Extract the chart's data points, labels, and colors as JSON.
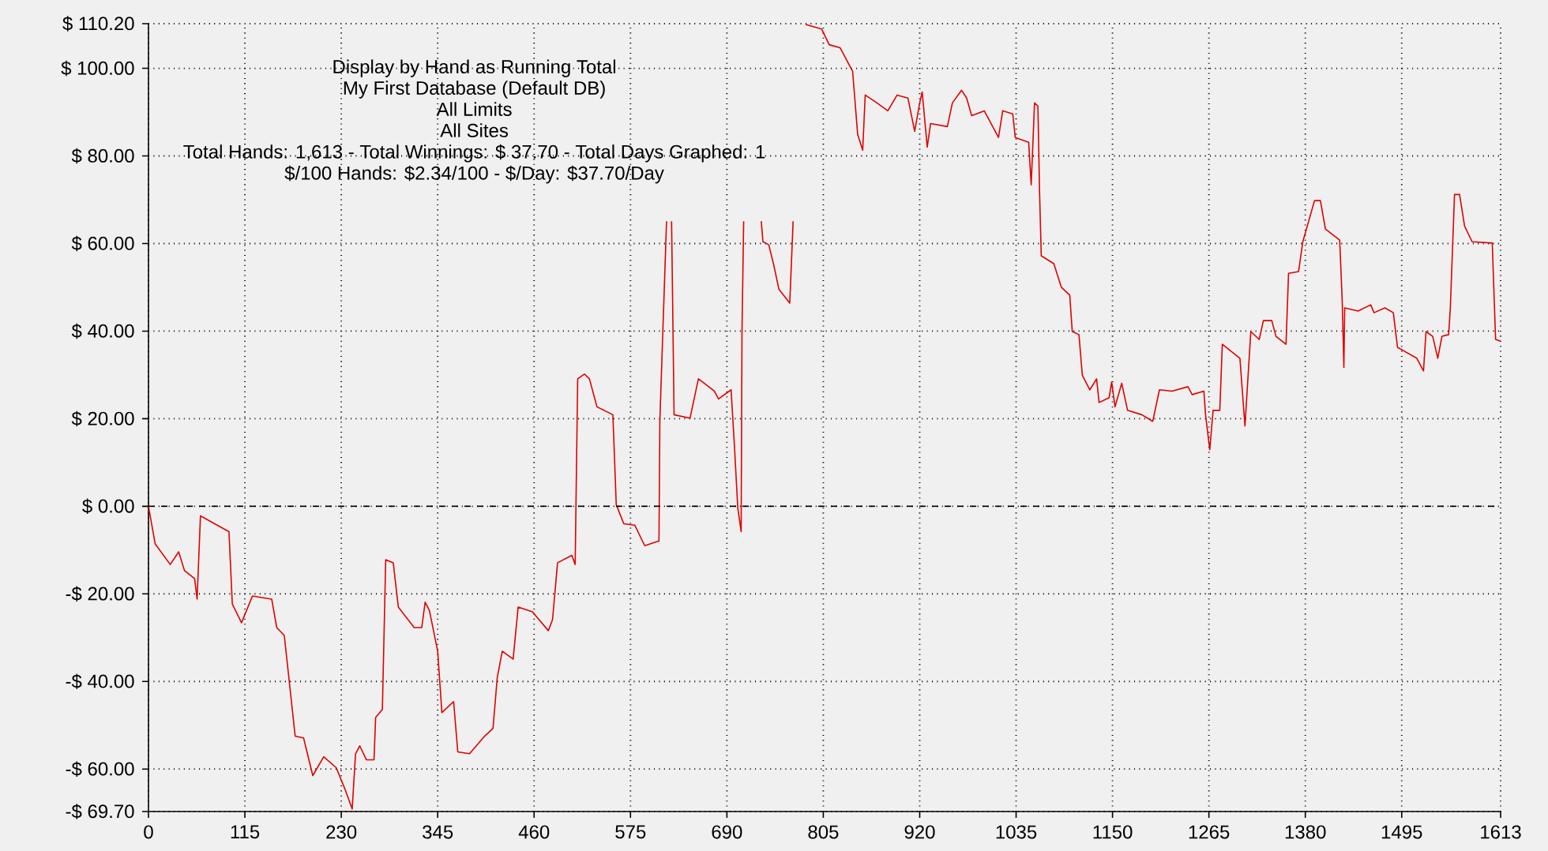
{
  "chart_data": {
    "type": "line",
    "title": "Display by Hand as Running Total",
    "subtitle": "My First Database (Default DB)",
    "annotations": [
      "All Limits",
      "All Sites",
      "Total Hands: 1,613 - Total Winnings: $ 37.70 - Total Days Graphed: 1",
      "$/100 Hands: $2.34/100 - $/Day: $37.70/Day"
    ],
    "xlim": [
      0,
      1613
    ],
    "xticks": [
      0,
      115,
      230,
      345,
      460,
      575,
      690,
      805,
      920,
      1035,
      1150,
      1265,
      1380,
      1495,
      1613
    ],
    "ylim": [
      -69.7,
      110.2
    ],
    "yticks": [
      {
        "value": -69.7,
        "label": "-$ 69.70"
      },
      {
        "value": -60,
        "label": "-$ 60.00"
      },
      {
        "value": -40,
        "label": "-$ 40.00"
      },
      {
        "value": -20,
        "label": "-$ 20.00"
      },
      {
        "value": 0,
        "label": "$ 0.00"
      },
      {
        "value": 20,
        "label": "$ 20.00"
      },
      {
        "value": 40,
        "label": "$ 40.00"
      },
      {
        "value": 60,
        "label": "$ 60.00"
      },
      {
        "value": 80,
        "label": "$ 80.00"
      },
      {
        "value": 100,
        "label": "$ 100.00"
      },
      {
        "value": 110.2,
        "label": "$ 110.20"
      }
    ],
    "grid": true,
    "marker": "none",
    "line_style": "solid",
    "ref_lines": [
      {
        "axis": "y",
        "value": 0,
        "line_style": "dashed",
        "color": "#000000"
      }
    ],
    "series": [
      {
        "color": "#e00000",
        "x": [
          0,
          8,
          26,
          36,
          43,
          55,
          58,
          62,
          96,
          100,
          111,
          124,
          147,
          153,
          162,
          175,
          185,
          196,
          209,
          224,
          234,
          243,
          247,
          252,
          260,
          269,
          271,
          279,
          283,
          292,
          298,
          317,
          326,
          330,
          335,
          345,
          350,
          364,
          369,
          383,
          401,
          411,
          416,
          422,
          435,
          441,
          458,
          477,
          482,
          488,
          505,
          509,
          512,
          520,
          526,
          535,
          554,
          558,
          567,
          580,
          592,
          609,
          610,
          618,
          621,
          624,
          627,
          646,
          656,
          661,
          675,
          680,
          695,
          699,
          703,
          707,
          708,
          710,
          720,
          731,
          733,
          740,
          746,
          752,
          765,
          769,
          776,
          784,
          803,
          812,
          825,
          835,
          840,
          846,
          852,
          855,
          869,
          882,
          893,
          906,
          914,
          920,
          923,
          929,
          933,
          953,
          959,
          970,
          976,
          982,
          997,
          1014,
          1019,
          1031,
          1034,
          1050,
          1053,
          1057,
          1061,
          1063,
          1065,
          1080,
          1089,
          1099,
          1102,
          1110,
          1114,
          1123,
          1131,
          1134,
          1146,
          1149,
          1153,
          1161,
          1168,
          1185,
          1198,
          1206,
          1221,
          1240,
          1245,
          1259,
          1261,
          1266,
          1270,
          1278,
          1281,
          1302,
          1308,
          1315,
          1325,
          1330,
          1340,
          1345,
          1357,
          1360,
          1372,
          1377,
          1391,
          1398,
          1404,
          1421,
          1424,
          1426,
          1427,
          1443,
          1458,
          1462,
          1475,
          1485,
          1490,
          1513,
          1521,
          1524,
          1532,
          1538,
          1543,
          1551,
          1553,
          1558,
          1564,
          1570,
          1579,
          1603,
          1607,
          1613
        ],
        "values": [
          0,
          -8.6,
          -13.3,
          -10.4,
          -14.7,
          -16.5,
          -21.2,
          -2.2,
          -5.8,
          -22.3,
          -26.6,
          -20.5,
          -21.2,
          -27.7,
          -29.5,
          -52.5,
          -52.9,
          -61.5,
          -57.2,
          -59.7,
          -64.4,
          -69.1,
          -56.5,
          -54.7,
          -57.9,
          -57.9,
          -48.2,
          -46.4,
          -12.2,
          -12.9,
          -23.0,
          -27.7,
          -27.7,
          -21.9,
          -23.7,
          -33.1,
          -47.1,
          -44.6,
          -56.1,
          -56.5,
          -52.5,
          -50.7,
          -39.2,
          -33.1,
          -34.9,
          -23.0,
          -24.1,
          -28.4,
          -25.9,
          -12.9,
          -11.2,
          -13.3,
          29.1,
          30.2,
          29.1,
          22.7,
          20.9,
          0.4,
          -4.0,
          -4.3,
          -9.0,
          -7.9,
          19.4,
          65.1,
          null,
          65.1,
          20.9,
          20.1,
          29.1,
          28.4,
          26.3,
          24.5,
          26.6,
          13.7,
          -0.4,
          -5.8,
          39.9,
          65.1,
          null,
          65.1,
          60.4,
          59.7,
          55.0,
          49.6,
          46.4,
          65.1,
          null,
          110.0,
          109.0,
          105.4,
          104.7,
          101.1,
          99.3,
          84.9,
          81.3,
          93.9,
          92.1,
          90.3,
          93.9,
          93.2,
          85.6,
          92.1,
          94.6,
          82.0,
          87.4,
          86.7,
          92.1,
          95.0,
          93.2,
          89.2,
          90.3,
          84.2,
          90.3,
          89.6,
          84.2,
          83.1,
          73.4,
          92.1,
          91.4,
          71.6,
          57.2,
          55.4,
          50.0,
          48.2,
          39.9,
          39.2,
          29.9,
          26.6,
          29.1,
          23.7,
          24.8,
          28.4,
          22.7,
          28.1,
          21.9,
          20.9,
          19.4,
          26.6,
          26.3,
          27.3,
          25.5,
          26.3,
          20.9,
          12.9,
          21.9,
          21.9,
          37.0,
          33.8,
          18.3,
          39.9,
          38.1,
          42.4,
          42.4,
          38.8,
          37.0,
          53.2,
          53.6,
          60.4,
          69.8,
          69.8,
          63.3,
          60.8,
          47.1,
          31.7,
          45.3,
          44.6,
          46.0,
          44.2,
          45.3,
          44.2,
          36.3,
          33.8,
          30.9,
          39.9,
          38.8,
          33.8,
          38.8,
          39.2,
          45.3,
          71.2,
          71.2,
          64.0,
          60.4,
          60.1,
          38.1,
          37.7
        ]
      }
    ]
  }
}
